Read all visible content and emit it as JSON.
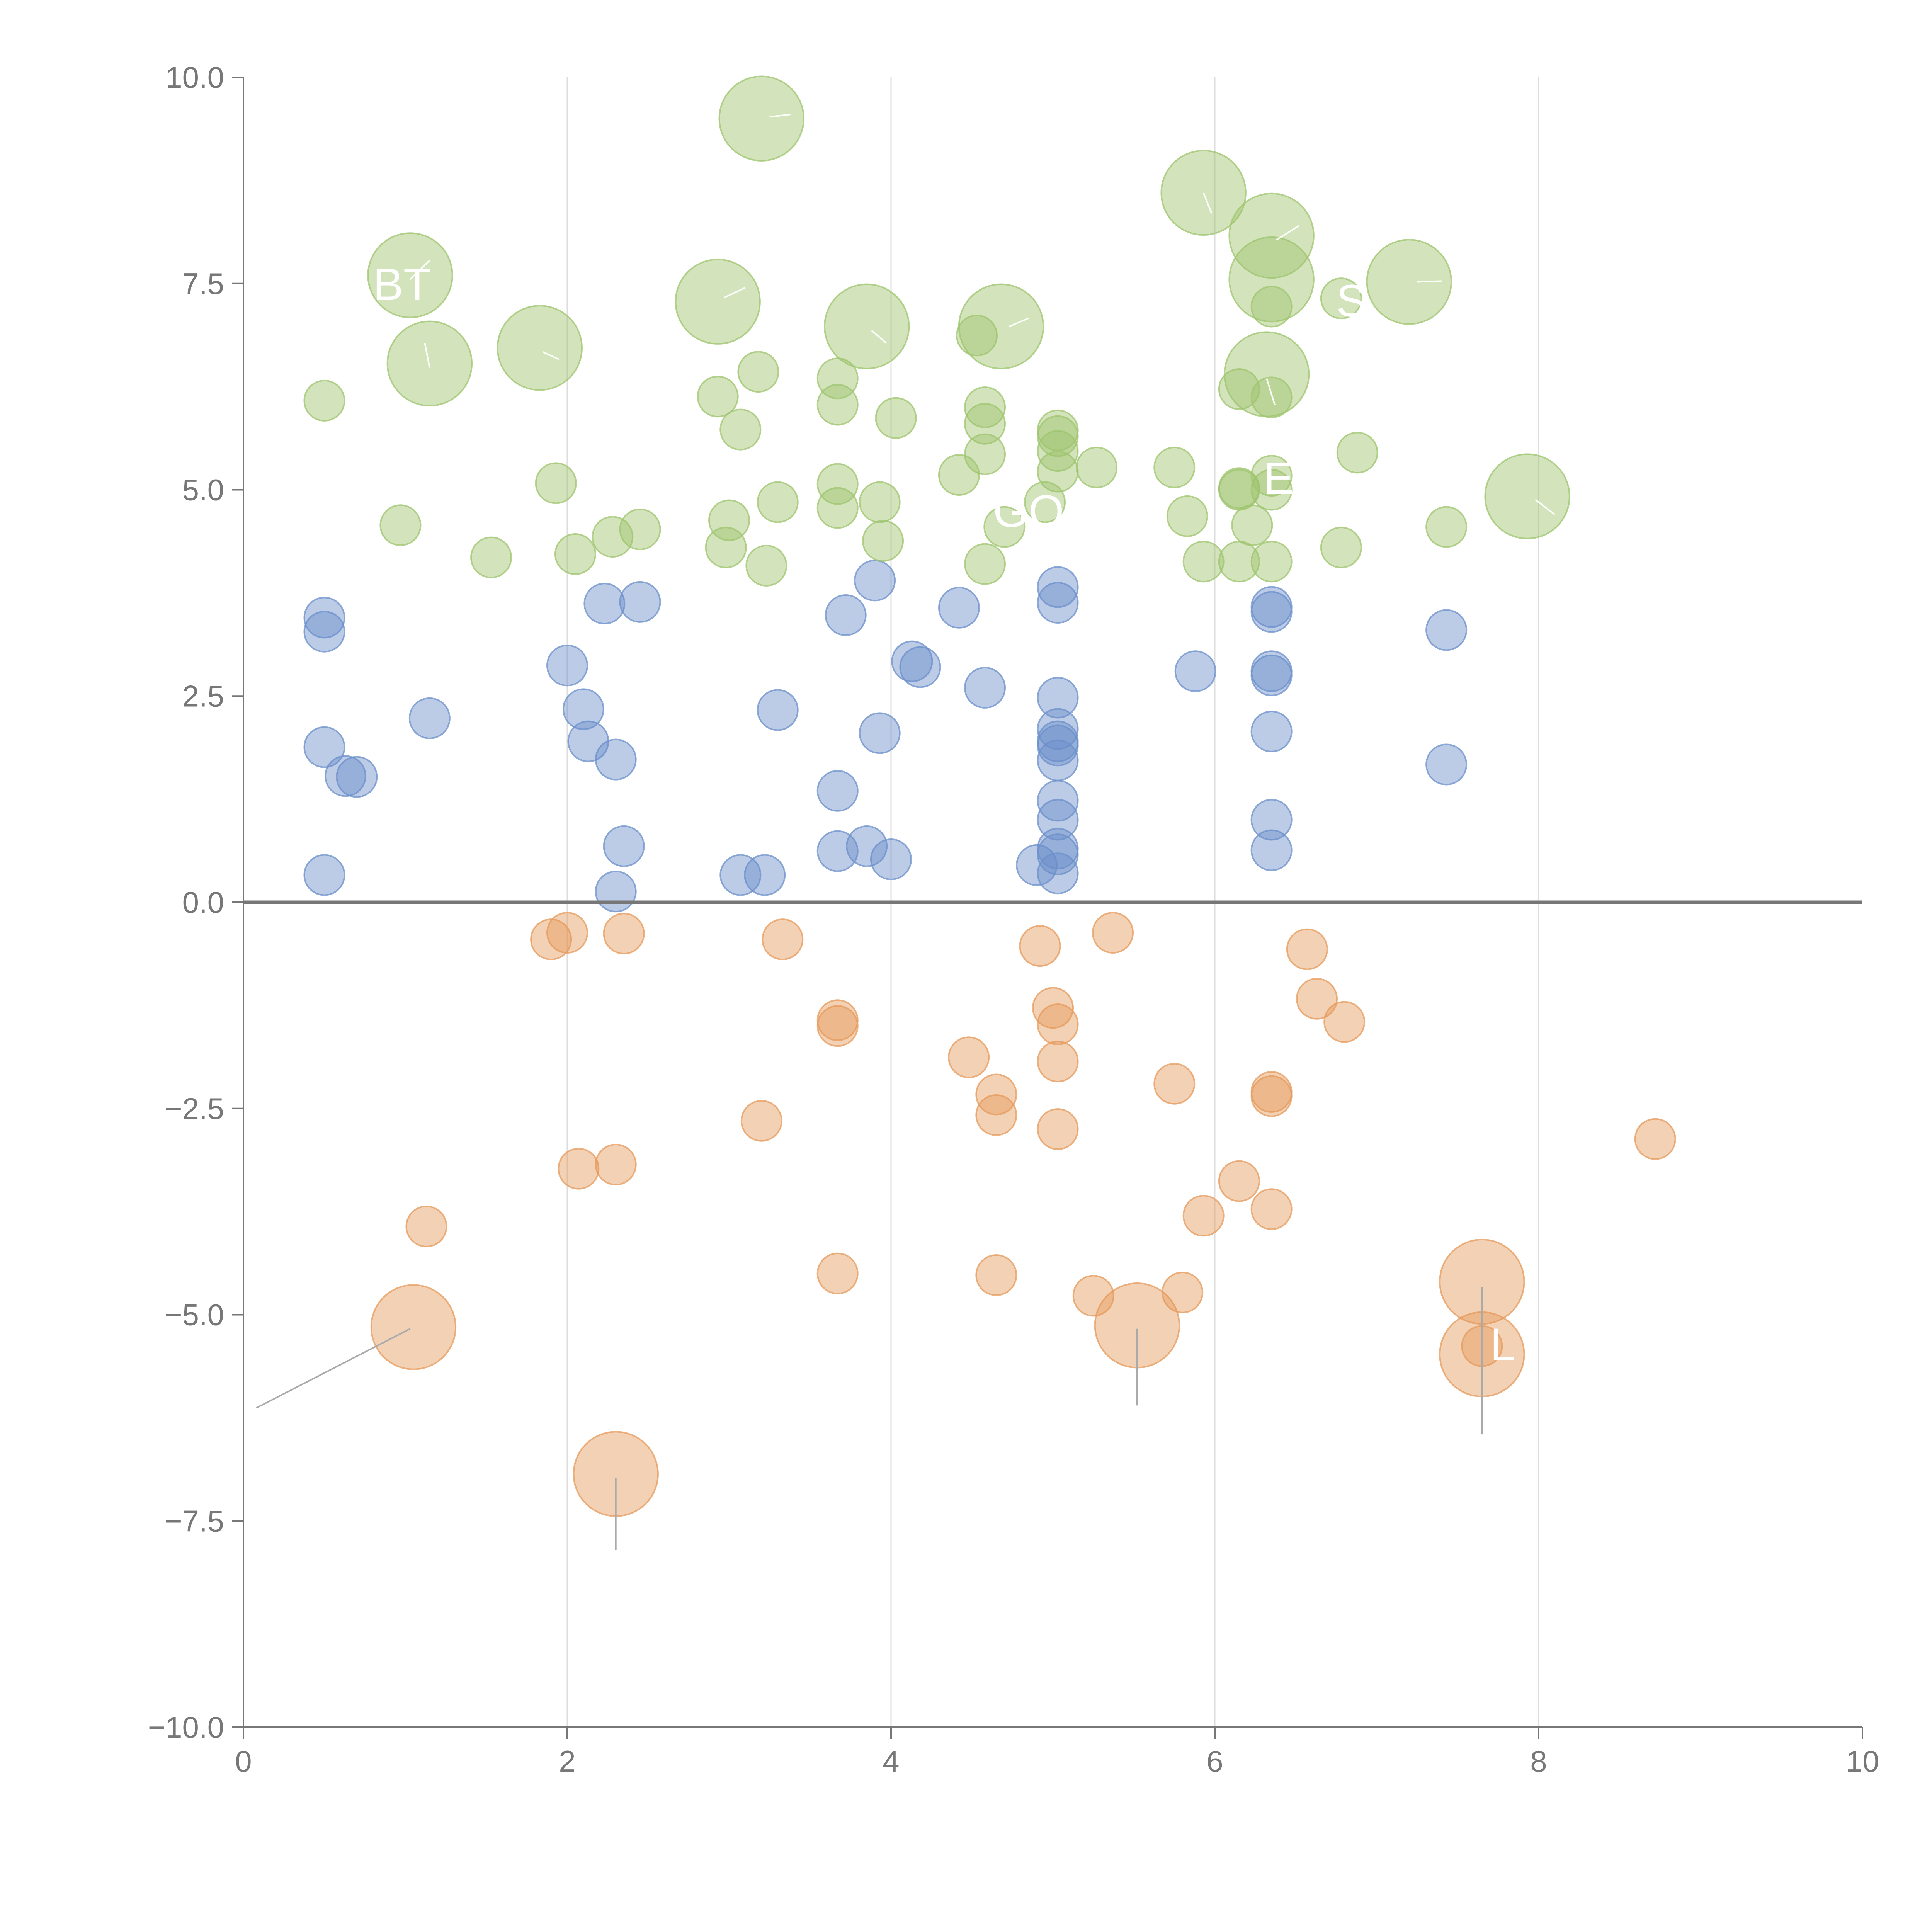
{
  "chart_data": {
    "type": "scatter",
    "title": "",
    "xlabel": "",
    "ylabel": "",
    "xlim": [
      0,
      10
    ],
    "ylim": [
      -10,
      10
    ],
    "x_ticks": [
      "0",
      "2",
      "4",
      "6",
      "8",
      "10"
    ],
    "y_ticks": [
      "−10.0",
      "−7.5",
      "−5.0",
      "−2.5",
      "0.0",
      "2.5",
      "5.0",
      "7.5",
      "10.0"
    ],
    "x_gridlines": [
      2,
      4,
      6,
      8
    ],
    "zero_line": 0,
    "colors": {
      "blue": "#6b8fc9",
      "orange": "#e59a5b",
      "green": "#9dc46d",
      "axis": "#777777",
      "grid": "#dddddd"
    },
    "series": [
      {
        "name": "blue",
        "color": "#6b8fc9",
        "points": [
          [
            0.5,
            3.45,
            1
          ],
          [
            0.5,
            3.28,
            1
          ],
          [
            0.5,
            1.88,
            1
          ],
          [
            0.5,
            0.33,
            1
          ],
          [
            0.63,
            1.53,
            1
          ],
          [
            0.7,
            1.52,
            1
          ],
          [
            1.15,
            2.23,
            1
          ],
          [
            2.0,
            2.87,
            1
          ],
          [
            2.1,
            2.34,
            1
          ],
          [
            2.13,
            1.95,
            1
          ],
          [
            2.23,
            3.62,
            1
          ],
          [
            2.3,
            1.73,
            1
          ],
          [
            2.3,
            0.13,
            1
          ],
          [
            2.35,
            0.68,
            1
          ],
          [
            2.45,
            3.64,
            1
          ],
          [
            3.07,
            0.33,
            1
          ],
          [
            3.22,
            0.33,
            1
          ],
          [
            3.3,
            2.33,
            1
          ],
          [
            3.67,
            1.35,
            1
          ],
          [
            3.67,
            0.62,
            1
          ],
          [
            3.72,
            3.48,
            1
          ],
          [
            3.85,
            0.68,
            1
          ],
          [
            3.9,
            3.9,
            1
          ],
          [
            3.93,
            2.05,
            1
          ],
          [
            4.0,
            0.52,
            1
          ],
          [
            4.13,
            2.92,
            1
          ],
          [
            4.18,
            2.85,
            1
          ],
          [
            4.42,
            3.57,
            1
          ],
          [
            4.58,
            2.6,
            1
          ],
          [
            4.9,
            0.45,
            1
          ],
          [
            5.03,
            3.82,
            1
          ],
          [
            5.03,
            3.63,
            1
          ],
          [
            5.03,
            2.48,
            1
          ],
          [
            5.03,
            2.1,
            1
          ],
          [
            5.03,
            1.95,
            1
          ],
          [
            5.03,
            1.9,
            1
          ],
          [
            5.03,
            1.72,
            1
          ],
          [
            5.03,
            1.23,
            1
          ],
          [
            5.03,
            1.0,
            1
          ],
          [
            5.03,
            0.65,
            1
          ],
          [
            5.03,
            0.58,
            1
          ],
          [
            5.03,
            0.35,
            1
          ],
          [
            5.88,
            2.8,
            1
          ],
          [
            6.35,
            3.58,
            1
          ],
          [
            6.35,
            3.52,
            1
          ],
          [
            6.35,
            2.8,
            1
          ],
          [
            6.35,
            2.75,
            1
          ],
          [
            6.35,
            2.07,
            1
          ],
          [
            6.35,
            1.0,
            1
          ],
          [
            6.35,
            0.63,
            1
          ],
          [
            7.43,
            3.3,
            1
          ],
          [
            7.43,
            1.67,
            1
          ]
        ]
      },
      {
        "name": "orange",
        "color": "#e59a5b",
        "points": [
          [
            1.13,
            -3.93,
            1
          ],
          [
            1.05,
            -5.15,
            2.2
          ],
          [
            1.9,
            -0.45,
            1
          ],
          [
            2.0,
            -0.37,
            1
          ],
          [
            2.07,
            -3.23,
            1
          ],
          [
            2.3,
            -3.18,
            1
          ],
          [
            2.35,
            -0.38,
            1
          ],
          [
            2.3,
            -6.93,
            2.2
          ],
          [
            3.2,
            -2.65,
            1
          ],
          [
            3.33,
            -0.45,
            1
          ],
          [
            3.67,
            -1.43,
            1
          ],
          [
            3.67,
            -1.5,
            1
          ],
          [
            3.67,
            -4.5,
            1
          ],
          [
            4.48,
            -1.88,
            1
          ],
          [
            4.65,
            -2.33,
            1
          ],
          [
            4.65,
            -2.58,
            1
          ],
          [
            4.65,
            -4.52,
            1
          ],
          [
            4.92,
            -0.53,
            1
          ],
          [
            5.0,
            -1.28,
            1
          ],
          [
            5.03,
            -1.48,
            1
          ],
          [
            5.03,
            -1.93,
            1
          ],
          [
            5.03,
            -2.75,
            1
          ],
          [
            5.25,
            -4.77,
            1
          ],
          [
            5.37,
            -0.37,
            1
          ],
          [
            5.52,
            -5.13,
            2.2
          ],
          [
            5.75,
            -2.2,
            1
          ],
          [
            5.8,
            -4.73,
            1
          ],
          [
            5.93,
            -3.8,
            1
          ],
          [
            6.15,
            -3.38,
            1
          ],
          [
            6.35,
            -2.3,
            1
          ],
          [
            6.35,
            -2.35,
            1
          ],
          [
            6.35,
            -3.72,
            1
          ],
          [
            6.57,
            -0.57,
            1
          ],
          [
            6.63,
            -1.17,
            1
          ],
          [
            6.8,
            -1.45,
            1
          ],
          [
            7.65,
            -4.6,
            2.2
          ],
          [
            7.65,
            -5.48,
            2.2
          ],
          [
            7.65,
            -5.38,
            1
          ],
          [
            8.72,
            -2.87,
            1
          ]
        ]
      },
      {
        "name": "green",
        "color": "#9dc46d",
        "points": [
          [
            0.5,
            6.08,
            1
          ],
          [
            0.97,
            4.57,
            1
          ],
          [
            1.03,
            7.6,
            2.2
          ],
          [
            1.15,
            6.53,
            2.2
          ],
          [
            1.53,
            4.18,
            1
          ],
          [
            1.83,
            6.72,
            2.2
          ],
          [
            1.93,
            5.08,
            1
          ],
          [
            2.05,
            4.22,
            1
          ],
          [
            2.28,
            4.43,
            1
          ],
          [
            2.45,
            4.52,
            1
          ],
          [
            2.93,
            7.28,
            2.2
          ],
          [
            2.93,
            6.13,
            1
          ],
          [
            2.98,
            4.3,
            1
          ],
          [
            3.0,
            4.63,
            1
          ],
          [
            3.07,
            5.73,
            1
          ],
          [
            3.18,
            6.43,
            1
          ],
          [
            3.2,
            9.5,
            2.2
          ],
          [
            3.23,
            4.08,
            1
          ],
          [
            3.3,
            4.85,
            1
          ],
          [
            3.67,
            6.35,
            1
          ],
          [
            3.67,
            6.03,
            1
          ],
          [
            3.67,
            5.07,
            1
          ],
          [
            3.67,
            4.78,
            1
          ],
          [
            3.85,
            6.98,
            2.2
          ],
          [
            3.93,
            4.85,
            1
          ],
          [
            3.95,
            4.38,
            1
          ],
          [
            4.03,
            5.87,
            1
          ],
          [
            4.42,
            5.18,
            1
          ],
          [
            4.53,
            6.87,
            1
          ],
          [
            4.58,
            6.0,
            1
          ],
          [
            4.58,
            5.8,
            1
          ],
          [
            4.58,
            5.43,
            1
          ],
          [
            4.58,
            4.1,
            1
          ],
          [
            4.68,
            6.98,
            2.2
          ],
          [
            4.7,
            4.55,
            1
          ],
          [
            4.95,
            4.85,
            1
          ],
          [
            5.03,
            5.72,
            1
          ],
          [
            5.03,
            5.65,
            1
          ],
          [
            5.03,
            5.47,
            1
          ],
          [
            5.03,
            5.22,
            1
          ],
          [
            5.27,
            5.27,
            1
          ],
          [
            5.75,
            5.27,
            1
          ],
          [
            5.83,
            4.68,
            1
          ],
          [
            5.93,
            4.13,
            1
          ],
          [
            5.93,
            8.6,
            2.2
          ],
          [
            6.15,
            6.22,
            1
          ],
          [
            6.15,
            5.02,
            1
          ],
          [
            6.15,
            5.0,
            1
          ],
          [
            6.15,
            4.13,
            1
          ],
          [
            6.23,
            4.57,
            1
          ],
          [
            6.32,
            6.4,
            2.2
          ],
          [
            6.35,
            8.08,
            2.2
          ],
          [
            6.35,
            7.55,
            2.2
          ],
          [
            6.35,
            7.22,
            1
          ],
          [
            6.35,
            6.12,
            1
          ],
          [
            6.35,
            5.17,
            1
          ],
          [
            6.35,
            5.0,
            1
          ],
          [
            6.35,
            4.13,
            1
          ],
          [
            6.78,
            7.32,
            1
          ],
          [
            6.78,
            4.3,
            1
          ],
          [
            6.88,
            5.45,
            1
          ],
          [
            7.2,
            7.52,
            2.2
          ],
          [
            7.43,
            4.55,
            1
          ],
          [
            7.93,
            4.92,
            2.2
          ]
        ]
      }
    ],
    "leader_lines": [
      {
        "series": "orange",
        "from": [
          1.03,
          -5.17
        ],
        "to": [
          0.08,
          -6.13
        ]
      },
      {
        "series": "orange",
        "from": [
          2.3,
          -6.98
        ],
        "to": [
          2.3,
          -7.85
        ]
      },
      {
        "series": "orange",
        "from": [
          5.52,
          -5.17
        ],
        "to": [
          5.52,
          -6.1
        ]
      },
      {
        "series": "orange",
        "from": [
          7.65,
          -4.67
        ],
        "to": [
          7.65,
          -6.45
        ]
      },
      {
        "series": "green",
        "from": [
          1.03,
          7.55
        ],
        "to": [
          1.15,
          7.78
        ]
      },
      {
        "series": "green",
        "from": [
          1.15,
          6.48
        ],
        "to": [
          1.12,
          6.78
        ]
      },
      {
        "series": "green",
        "from": [
          1.85,
          6.67
        ],
        "to": [
          1.95,
          6.58
        ]
      },
      {
        "series": "green",
        "from": [
          2.97,
          7.33
        ],
        "to": [
          3.1,
          7.45
        ]
      },
      {
        "series": "green",
        "from": [
          3.25,
          9.52
        ],
        "to": [
          3.38,
          9.55
        ]
      },
      {
        "series": "green",
        "from": [
          3.88,
          6.93
        ],
        "to": [
          3.97,
          6.78
        ]
      },
      {
        "series": "green",
        "from": [
          4.73,
          6.98
        ],
        "to": [
          4.85,
          7.08
        ]
      },
      {
        "series": "green",
        "from": [
          5.93,
          8.6
        ],
        "to": [
          5.98,
          8.35
        ]
      },
      {
        "series": "green",
        "from": [
          6.38,
          8.03
        ],
        "to": [
          6.52,
          8.2
        ]
      },
      {
        "series": "green",
        "from": [
          6.32,
          6.35
        ],
        "to": [
          6.37,
          6.03
        ]
      },
      {
        "series": "green",
        "from": [
          7.25,
          7.52
        ],
        "to": [
          7.4,
          7.53
        ]
      },
      {
        "series": "green",
        "from": [
          7.98,
          4.88
        ],
        "to": [
          8.1,
          4.7
        ]
      }
    ],
    "annotations": [
      {
        "text": "BT",
        "x": 0.8,
        "y": 7.3,
        "series": "green"
      },
      {
        "text": "GO",
        "x": 4.63,
        "y": 4.55,
        "series": "green"
      },
      {
        "text": "E",
        "x": 6.3,
        "y": 4.95,
        "series": "green"
      },
      {
        "text": "S",
        "x": 6.75,
        "y": 7.1,
        "series": "green"
      },
      {
        "text": "L",
        "x": 7.7,
        "y": -5.55,
        "series": "orange"
      }
    ]
  }
}
